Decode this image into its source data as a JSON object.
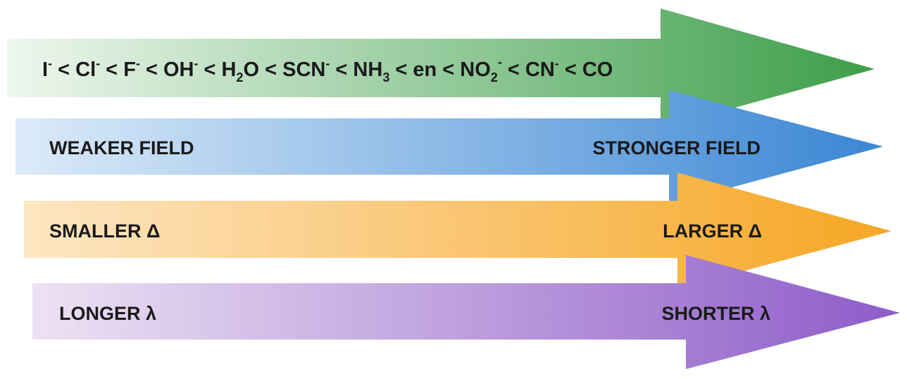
{
  "diagram": {
    "series": {
      "items": [
        {
          "base": "I",
          "sup": "-"
        },
        {
          "op": "<"
        },
        {
          "base": "Cl",
          "sup": "-"
        },
        {
          "op": "<"
        },
        {
          "base": "F",
          "sup": "-"
        },
        {
          "op": "<"
        },
        {
          "base": "OH",
          "sup": "-"
        },
        {
          "op": "<"
        },
        {
          "base": "H",
          "sub": "2",
          "rest": "O"
        },
        {
          "op": "<"
        },
        {
          "base": "SCN",
          "sup": "-"
        },
        {
          "op": "<"
        },
        {
          "base": "NH",
          "sub": "3"
        },
        {
          "op": "<"
        },
        {
          "base": "en"
        },
        {
          "op": "<"
        },
        {
          "base": "NO",
          "sub": "2",
          "sup": "-"
        },
        {
          "op": "<"
        },
        {
          "base": "CN",
          "sup": "-"
        },
        {
          "op": "<"
        },
        {
          "base": "CO"
        }
      ]
    },
    "field": {
      "left": "WEAKER FIELD",
      "right": "STRONGER FIELD"
    },
    "splitting": {
      "left": "SMALLER Δ",
      "right": "LARGER Δ"
    },
    "wavelength": {
      "left": "LONGER λ",
      "right": "SHORTER λ"
    }
  },
  "colors": {
    "green": "#3d9e4a",
    "green_light": "#eef7ee",
    "blue": "#3a86d4",
    "blue_light": "#dcebf8",
    "orange": "#f6a623",
    "orange_light": "#fde6c3",
    "purple": "#8e5cc9",
    "purple_light": "#ece2f3"
  }
}
